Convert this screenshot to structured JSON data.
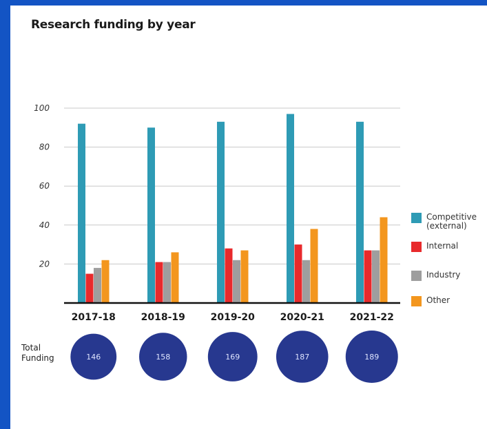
{
  "title": "Research funding by year",
  "colors": {
    "page_background": "#1354c4",
    "circle": "#27388f"
  },
  "chart_data": {
    "type": "bar",
    "title": "Research funding by year",
    "categories": [
      "2017-18",
      "2018-19",
      "2019-20",
      "2020-21",
      "2021-22"
    ],
    "ylim": [
      0,
      100
    ],
    "yticks": [
      20,
      40,
      60,
      80,
      100
    ],
    "grid": true,
    "legend_position": "right",
    "series": [
      {
        "name": "Competitive\n(external)",
        "color": "#2e9bb5",
        "values": [
          92,
          90,
          93,
          97,
          93
        ]
      },
      {
        "name": "Internal",
        "color": "#e82a2c",
        "values": [
          15,
          21,
          28,
          30,
          27
        ]
      },
      {
        "name": "Industry",
        "color": "#9e9e9e",
        "values": [
          18,
          21,
          22,
          22,
          27
        ]
      },
      {
        "name": "Other",
        "color": "#f3961e",
        "values": [
          22,
          26,
          27,
          38,
          44
        ]
      }
    ]
  },
  "total_funding": {
    "label": "Total\nFunding",
    "values": [
      146,
      158,
      169,
      187,
      189
    ]
  }
}
